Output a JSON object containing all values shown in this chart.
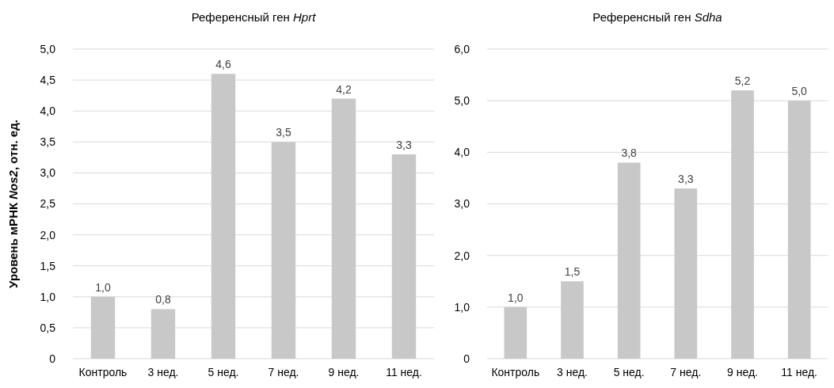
{
  "chart_data": [
    {
      "type": "bar",
      "title": "Референсный ген Hprt",
      "ylabel": "Уровень  мРНК Nos2, отн. ед.",
      "categories": [
        "Контроль",
        "3 нед.",
        "5 нед.",
        "7 нед.",
        "9 нед.",
        "11 нед."
      ],
      "values": [
        1.0,
        0.8,
        4.6,
        3.5,
        4.2,
        3.3
      ],
      "value_labels": [
        "1,0",
        "0,8",
        "4,6",
        "3,5",
        "4,2",
        "3,3"
      ],
      "color": "#c8c8c8",
      "ylim": [
        0,
        5
      ],
      "yticks": [
        0,
        {
          "value": 0.5,
          "label": "0,5"
        },
        {
          "value": 1,
          "label": "1,0"
        },
        {
          "value": 1.5,
          "label": "1,5"
        },
        {
          "value": 2,
          "label": "2,0"
        },
        {
          "value": 2.5,
          "label": "2,5"
        },
        {
          "value": 3,
          "label": "3,0"
        },
        {
          "value": 3.5,
          "label": "3,5"
        },
        {
          "value": 4,
          "label": "4,0"
        },
        {
          "value": 4.5,
          "label": "4,5"
        },
        {
          "value": 5,
          "label": "5,0"
        }
      ],
      "grid": "y"
    },
    {
      "type": "bar",
      "title": "Референсный ген Sdha",
      "categories": [
        "Контроль",
        "3 нед.",
        "5 нед.",
        "7 нед.",
        "9 нед.",
        "11 нед."
      ],
      "values": [
        1.0,
        1.5,
        3.8,
        3.3,
        5.2,
        5.0
      ],
      "value_labels": [
        "1,0",
        "1,5",
        "3,8",
        "3,3",
        "5,2",
        "5,0"
      ],
      "color": "#c8c8c8",
      "ylim": [
        0,
        6
      ],
      "yticks": [
        0,
        {
          "value": 1,
          "label": "1,0"
        },
        {
          "value": 2,
          "label": "2,0"
        },
        {
          "value": 3,
          "label": "3,0"
        },
        {
          "value": 4,
          "label": "4,0"
        },
        {
          "value": 5,
          "label": "5,0"
        },
        {
          "value": 6,
          "label": "6,0"
        }
      ],
      "grid": "y"
    }
  ]
}
